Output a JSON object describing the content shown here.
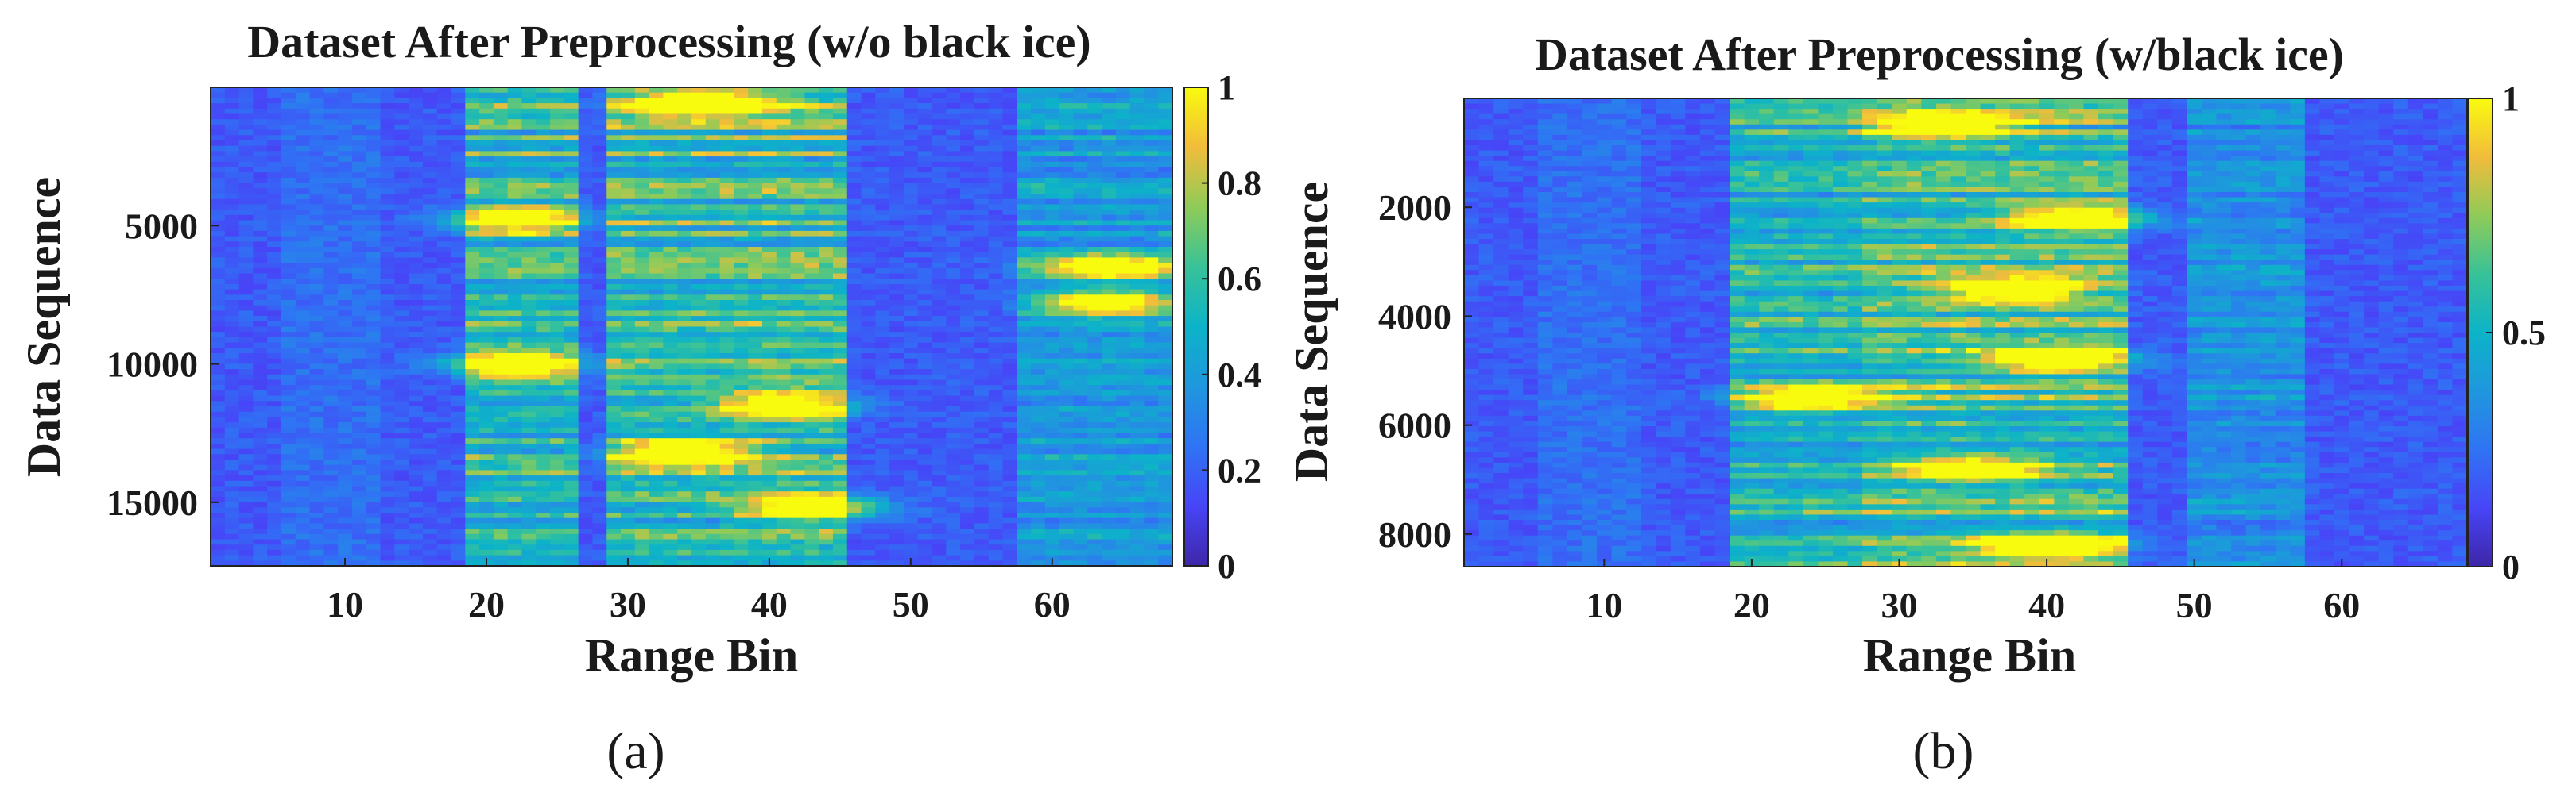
{
  "chart_data": [
    {
      "type": "heatmap",
      "title": "Dataset After Preprocessing (w/o black ice)",
      "xlabel": "Range Bin",
      "ylabel": "Data Sequence",
      "xlim": [
        0.5,
        68.5
      ],
      "ylim": [
        0,
        17300
      ],
      "xticks": [
        10,
        20,
        30,
        40,
        50,
        60
      ],
      "yticks": [
        5000,
        10000,
        15000
      ],
      "colorbar": {
        "range": [
          0,
          1
        ],
        "ticks": [
          "0",
          "0.2",
          "0.4",
          "0.6",
          "0.8",
          "1"
        ]
      },
      "bands": [
        {
          "x": [
            19,
            26
          ],
          "intensity": 0.75
        },
        {
          "x": [
            29,
            38
          ],
          "intensity": 0.82
        },
        {
          "x": [
            39,
            45
          ],
          "intensity": 0.85
        },
        {
          "x": [
            58,
            68
          ],
          "intensity": 0.45
        }
      ],
      "hotspots": [
        {
          "x": 35,
          "y": 600,
          "value": 0.95
        },
        {
          "x": 22,
          "y": 4800,
          "value": 0.9
        },
        {
          "x": 64,
          "y": 6500,
          "value": 0.9
        },
        {
          "x": 64,
          "y": 7800,
          "value": 0.9
        },
        {
          "x": 22,
          "y": 10000,
          "value": 0.95
        },
        {
          "x": 41,
          "y": 11500,
          "value": 0.9
        },
        {
          "x": 34,
          "y": 13200,
          "value": 0.95
        },
        {
          "x": 43,
          "y": 15200,
          "value": 0.95
        }
      ],
      "colormap": "parula",
      "panel_label": "(a)"
    },
    {
      "type": "heatmap",
      "title": "Dataset After Preprocessing (w/black ice)",
      "xlabel": "Range Bin",
      "ylabel": "Data Sequence",
      "xlim": [
        0.5,
        68.5
      ],
      "ylim": [
        0,
        8600
      ],
      "xticks": [
        10,
        20,
        30,
        40,
        50,
        60
      ],
      "yticks": [
        2000,
        4000,
        6000,
        8000
      ],
      "colorbar": {
        "range": [
          0,
          1
        ],
        "ticks": [
          "0",
          "0.5",
          "1"
        ]
      },
      "bands": [
        {
          "x": [
            19,
            27
          ],
          "intensity": 0.7
        },
        {
          "x": [
            28,
            38
          ],
          "intensity": 0.85
        },
        {
          "x": [
            39,
            45
          ],
          "intensity": 0.85
        },
        {
          "x": [
            50,
            57
          ],
          "intensity": 0.35
        }
      ],
      "hotspots": [
        {
          "x": 33,
          "y": 500,
          "value": 0.95
        },
        {
          "x": 42,
          "y": 2200,
          "value": 0.95
        },
        {
          "x": 38,
          "y": 3500,
          "value": 0.9
        },
        {
          "x": 41,
          "y": 4800,
          "value": 0.95
        },
        {
          "x": 24,
          "y": 5500,
          "value": 0.9
        },
        {
          "x": 35,
          "y": 6800,
          "value": 0.9
        },
        {
          "x": 40,
          "y": 8200,
          "value": 0.95
        }
      ],
      "colormap": "parula",
      "panel_label": "(b)"
    }
  ]
}
